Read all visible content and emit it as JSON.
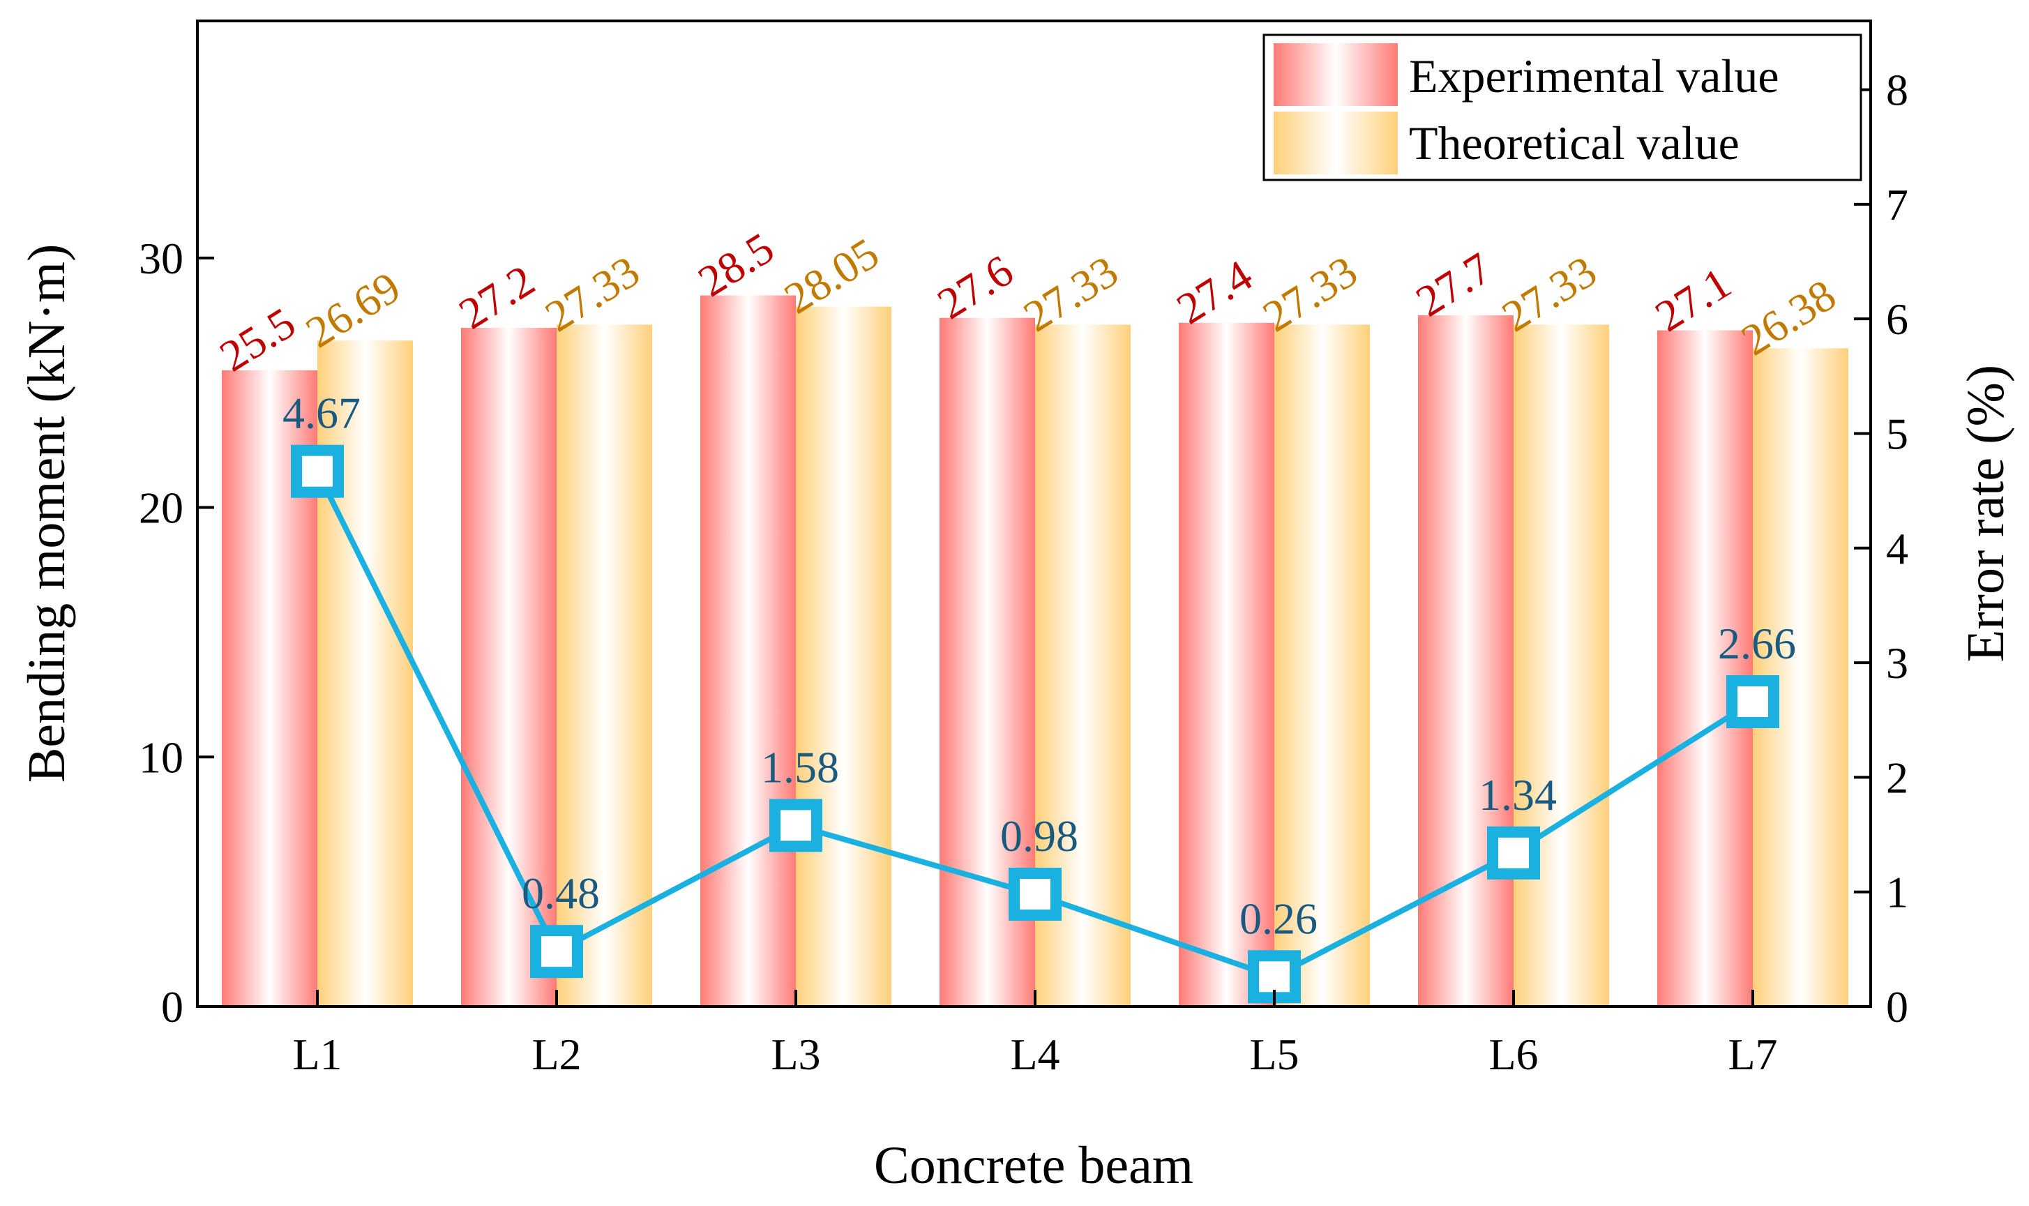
{
  "chart_data": {
    "type": "bar",
    "categories": [
      "L1",
      "L2",
      "L3",
      "L4",
      "L5",
      "L6",
      "L7"
    ],
    "series": [
      {
        "name": "Experimental value",
        "axis": "left",
        "values": [
          25.5,
          27.2,
          28.5,
          27.6,
          27.4,
          27.7,
          27.1
        ],
        "labels": [
          "25.5",
          "27.2",
          "28.5",
          "27.6",
          "27.4",
          "27.7",
          "27.1"
        ],
        "color": "#ff7a76",
        "label_color": "#c00000"
      },
      {
        "name": "Theoretical value",
        "axis": "left",
        "values": [
          26.69,
          27.33,
          28.05,
          27.33,
          27.33,
          27.33,
          26.38
        ],
        "labels": [
          "26.69",
          "27.33",
          "28.05",
          "27.33",
          "27.33",
          "27.33",
          "26.38"
        ],
        "color": "#ffd07a",
        "label_color": "#c07a00"
      }
    ],
    "line_series": {
      "name": "Error rate",
      "axis": "right",
      "type": "line",
      "values": [
        4.67,
        0.48,
        1.58,
        0.98,
        0.26,
        1.34,
        2.66
      ],
      "labels": [
        "4.67",
        "0.48",
        "1.58",
        "0.98",
        "0.26",
        "1.34",
        "2.66"
      ],
      "color": "#1ab0e0",
      "label_color": "#1a5a80"
    },
    "xlabel": "Concrete beam",
    "ylabel": "Bending moment (kN·m)",
    "y2label": "Error rate (%)",
    "ylim": [
      0,
      39.5
    ],
    "y2lim": [
      0,
      8.6
    ],
    "yticks": [
      0,
      10,
      20,
      30
    ],
    "ytick_labels": [
      "0",
      "10",
      "20",
      "30"
    ],
    "y2ticks": [
      0,
      1,
      2,
      3,
      4,
      5,
      6,
      7,
      8
    ],
    "y2tick_labels": [
      "0",
      "1",
      "2",
      "3",
      "4",
      "5",
      "6",
      "7",
      "8"
    ],
    "legend": {
      "position": "top-right",
      "entries": [
        "Experimental value",
        "Theoretical value"
      ]
    },
    "grid": false
  }
}
